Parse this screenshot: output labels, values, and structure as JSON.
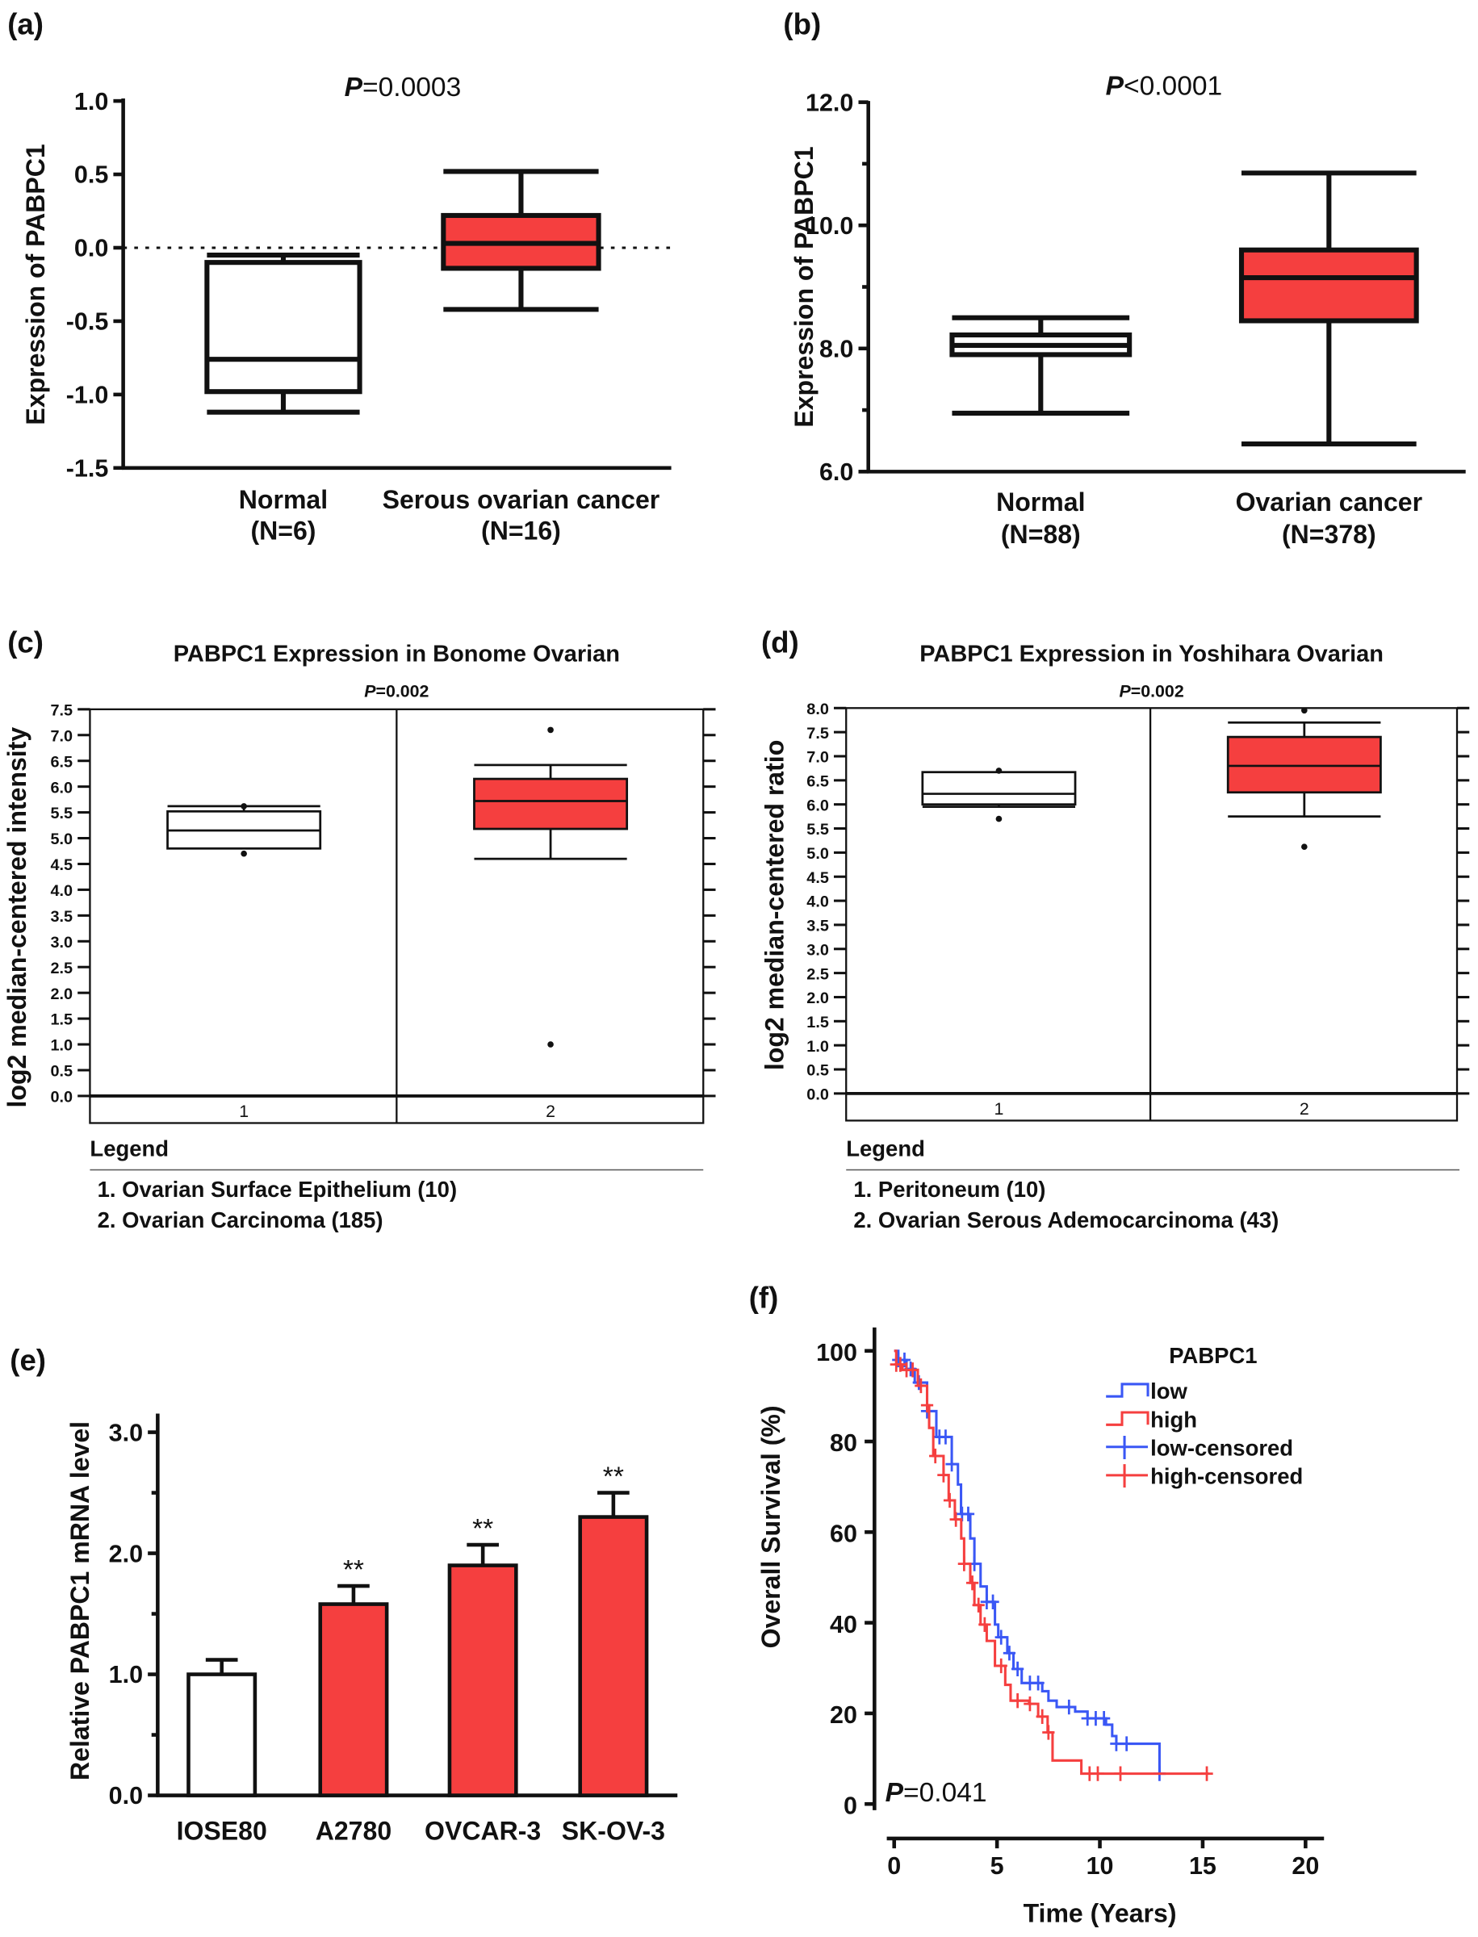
{
  "colors": {
    "red": "#f53f3f",
    "blue": "#3a57f5",
    "black": "#111111"
  },
  "chart_data": [
    {
      "panel_label": "(a)",
      "type": "box",
      "p_symbol": "P",
      "p_text": "=0.0003",
      "ylabel": "Expression of PABPC1",
      "ylim": [
        -1.5,
        1.0
      ],
      "yticks": [
        {
          "v": 1.0,
          "label": "1.0"
        },
        {
          "v": 0.5,
          "label": "0.5"
        },
        {
          "v": 0.0,
          "label": "0.0"
        },
        {
          "v": -0.5,
          "label": "-0.5"
        },
        {
          "v": -1.0,
          "label": "-1.0"
        },
        {
          "v": -1.5,
          "label": "-1.5"
        }
      ],
      "reference_line": 0,
      "categories": [
        {
          "name": "Normal",
          "n": "(N=6)"
        },
        {
          "name": "Serous ovarian cancer",
          "n": "(N=16)"
        }
      ],
      "boxes": [
        {
          "min": -1.12,
          "q1": -0.98,
          "median": -0.76,
          "q3": -0.1,
          "max": -0.05,
          "fill": "white"
        },
        {
          "min": -0.42,
          "q1": -0.14,
          "median": 0.03,
          "q3": 0.22,
          "max": 0.52,
          "fill": "red"
        }
      ]
    },
    {
      "panel_label": "(b)",
      "type": "box",
      "p_symbol": "P",
      "p_text": "<0.0001",
      "ylabel": "Expression of PABPC1",
      "ylim": [
        6.0,
        12.0
      ],
      "yticks": [
        {
          "v": 12,
          "label": "12.0"
        },
        {
          "v": 10,
          "label": "10.0"
        },
        {
          "v": 8,
          "label": "8.0"
        },
        {
          "v": 6,
          "label": "6.0"
        }
      ],
      "categories": [
        {
          "name": "Normal",
          "n": "(N=88)"
        },
        {
          "name": "Ovarian cancer",
          "n": "(N=378)"
        }
      ],
      "boxes": [
        {
          "min": 6.95,
          "q1": 7.9,
          "median": 8.05,
          "q3": 8.22,
          "max": 8.5,
          "fill": "white"
        },
        {
          "min": 6.45,
          "q1": 8.45,
          "median": 9.15,
          "q3": 9.6,
          "max": 10.85,
          "fill": "red"
        }
      ]
    },
    {
      "panel_label": "(c)",
      "type": "box",
      "title": "PABPC1 Expression in Bonome Ovarian",
      "p_symbol": "P",
      "p_text": "=0.002",
      "ylabel": "log2 median-centered intensity",
      "ylim": [
        0,
        7.5
      ],
      "yticks": [
        "0.0",
        "0.5",
        "1.0",
        "1.5",
        "2.0",
        "2.5",
        "3.0",
        "3.5",
        "4.0",
        "4.5",
        "5.0",
        "5.5",
        "6.0",
        "6.5",
        "7.0",
        "7.5"
      ],
      "categories": [
        "1",
        "2"
      ],
      "boxes": [
        {
          "min": null,
          "q1": 4.8,
          "median": 5.15,
          "q3": 5.52,
          "max": 5.62,
          "outliers": [
            5.62,
            4.7
          ],
          "fill": "white"
        },
        {
          "min": 4.6,
          "q1": 5.18,
          "median": 5.72,
          "q3": 6.15,
          "max": 6.42,
          "outliers": [
            7.1,
            1.0
          ],
          "fill": "red"
        }
      ],
      "legend_title": "Legend",
      "legend_items": [
        "1. Ovarian Surface Epithelium (10)",
        "2. Ovarian Carcinoma (185)"
      ]
    },
    {
      "panel_label": "(d)",
      "type": "box",
      "title": "PABPC1 Expression in Yoshihara Ovarian",
      "p_symbol": "P",
      "p_text": "=0.002",
      "ylabel": "log2 median-centered ratio",
      "ylim": [
        0,
        8.0
      ],
      "yticks": [
        "0.0",
        "0.5",
        "1.0",
        "1.5",
        "2.0",
        "2.5",
        "3.0",
        "3.5",
        "4.0",
        "4.5",
        "5.0",
        "5.5",
        "6.0",
        "6.5",
        "7.0",
        "7.5",
        "8.0"
      ],
      "categories": [
        "1",
        "2"
      ],
      "boxes": [
        {
          "min": 5.95,
          "q1": 6.0,
          "median": 6.22,
          "q3": 6.67,
          "max": null,
          "outliers": [
            6.7,
            5.7
          ],
          "fill": "white"
        },
        {
          "min": 5.75,
          "q1": 6.25,
          "median": 6.8,
          "q3": 7.4,
          "max": 7.7,
          "outliers": [
            7.95,
            5.12
          ],
          "fill": "red"
        }
      ],
      "legend_title": "Legend",
      "legend_items": [
        "1. Peritoneum (10)",
        "2. Ovarian Serous Ademocarcinoma (43)"
      ]
    },
    {
      "panel_label": "(e)",
      "type": "bar",
      "ylabel": "Relative PABPC1 mRNA  level",
      "ylim": [
        0,
        3.0
      ],
      "yticks": [
        {
          "v": 0,
          "label": "0.0"
        },
        {
          "v": 1,
          "label": "1.0"
        },
        {
          "v": 2,
          "label": "2.0"
        },
        {
          "v": 3,
          "label": "3.0"
        }
      ],
      "categories": [
        "IOSE80",
        "A2780",
        "OVCAR-3",
        "SK-OV-3"
      ],
      "values": [
        1.0,
        1.58,
        1.9,
        2.3
      ],
      "errors": [
        0.12,
        0.15,
        0.17,
        0.2
      ],
      "fills": [
        "white",
        "red",
        "red",
        "red"
      ],
      "significance": [
        "",
        "**",
        "**",
        "**"
      ]
    },
    {
      "panel_label": "(f)",
      "type": "line",
      "subtype": "kaplan-meier",
      "xlabel": "Time (Years)",
      "ylabel": "Overall Survival (%)",
      "xlim": [
        0,
        20
      ],
      "ylim": [
        0,
        100
      ],
      "xticks": [
        "0",
        "5",
        "10",
        "15",
        "20"
      ],
      "yticks": [
        "0",
        "20",
        "40",
        "60",
        "80",
        "100"
      ],
      "p_symbol": "P",
      "p_text": "=0.041",
      "legend_title": "PABPC1",
      "legend": [
        "low",
        "high",
        "low-censored",
        "high-censored"
      ],
      "series": [
        {
          "name": "low",
          "color": "blue",
          "steps": [
            [
              0,
              100
            ],
            [
              0.2,
              98
            ],
            [
              0.6,
              96
            ],
            [
              1.0,
              93
            ],
            [
              1.6,
              86.7
            ],
            [
              2.05,
              81
            ],
            [
              2.8,
              75
            ],
            [
              3.1,
              70.5
            ],
            [
              3.25,
              64
            ],
            [
              3.7,
              58.6
            ],
            [
              3.9,
              53
            ],
            [
              4.2,
              48
            ],
            [
              4.5,
              44.6
            ],
            [
              4.9,
              39.6
            ],
            [
              5.06,
              36.8
            ],
            [
              5.5,
              33.3
            ],
            [
              5.8,
              29.8
            ],
            [
              6.2,
              26.7
            ],
            [
              7.2,
              24.9
            ],
            [
              7.5,
              22.8
            ],
            [
              7.9,
              21.4
            ],
            [
              8.8,
              20.4
            ],
            [
              9.4,
              18.9
            ],
            [
              10.3,
              17.5
            ],
            [
              10.6,
              15
            ],
            [
              10.8,
              13.3
            ],
            [
              12.9,
              6.7
            ],
            [
              13.2,
              6.7
            ]
          ],
          "censored": [
            0.2,
            0.5,
            0.8,
            1.2,
            1.6,
            2.2,
            2.5,
            2.8,
            3.3,
            3.6,
            3.9,
            4.5,
            4.8,
            5.2,
            5.6,
            6.0,
            6.6,
            7.0,
            8.5,
            9.4,
            9.8,
            10.2,
            10.8,
            11.3,
            12.9
          ]
        },
        {
          "name": "high",
          "color": "red",
          "steps": [
            [
              0,
              100
            ],
            [
              0.1,
              97
            ],
            [
              0.4,
              95.8
            ],
            [
              1.15,
              92.3
            ],
            [
              1.6,
              88
            ],
            [
              1.7,
              83
            ],
            [
              1.9,
              76.8
            ],
            [
              2.4,
              72.6
            ],
            [
              2.65,
              67
            ],
            [
              2.95,
              62.8
            ],
            [
              3.26,
              58.6
            ],
            [
              3.4,
              53
            ],
            [
              3.7,
              48.8
            ],
            [
              3.9,
              43.9
            ],
            [
              4.2,
              39.6
            ],
            [
              4.5,
              36
            ],
            [
              4.9,
              30.5
            ],
            [
              5.4,
              26.3
            ],
            [
              5.66,
              22.8
            ],
            [
              6.56,
              22.1
            ],
            [
              7.0,
              19.3
            ],
            [
              7.46,
              15.8
            ],
            [
              7.7,
              9.6
            ],
            [
              9.1,
              6.7
            ],
            [
              15.3,
              6.7
            ]
          ],
          "censored": [
            0.1,
            0.3,
            0.6,
            0.9,
            1.3,
            1.6,
            2.0,
            2.4,
            2.7,
            3.0,
            3.4,
            3.8,
            4.1,
            4.4,
            5.2,
            6.0,
            6.6,
            7.2,
            7.5,
            9.5,
            9.9,
            11.0,
            15.2
          ]
        }
      ]
    }
  ]
}
